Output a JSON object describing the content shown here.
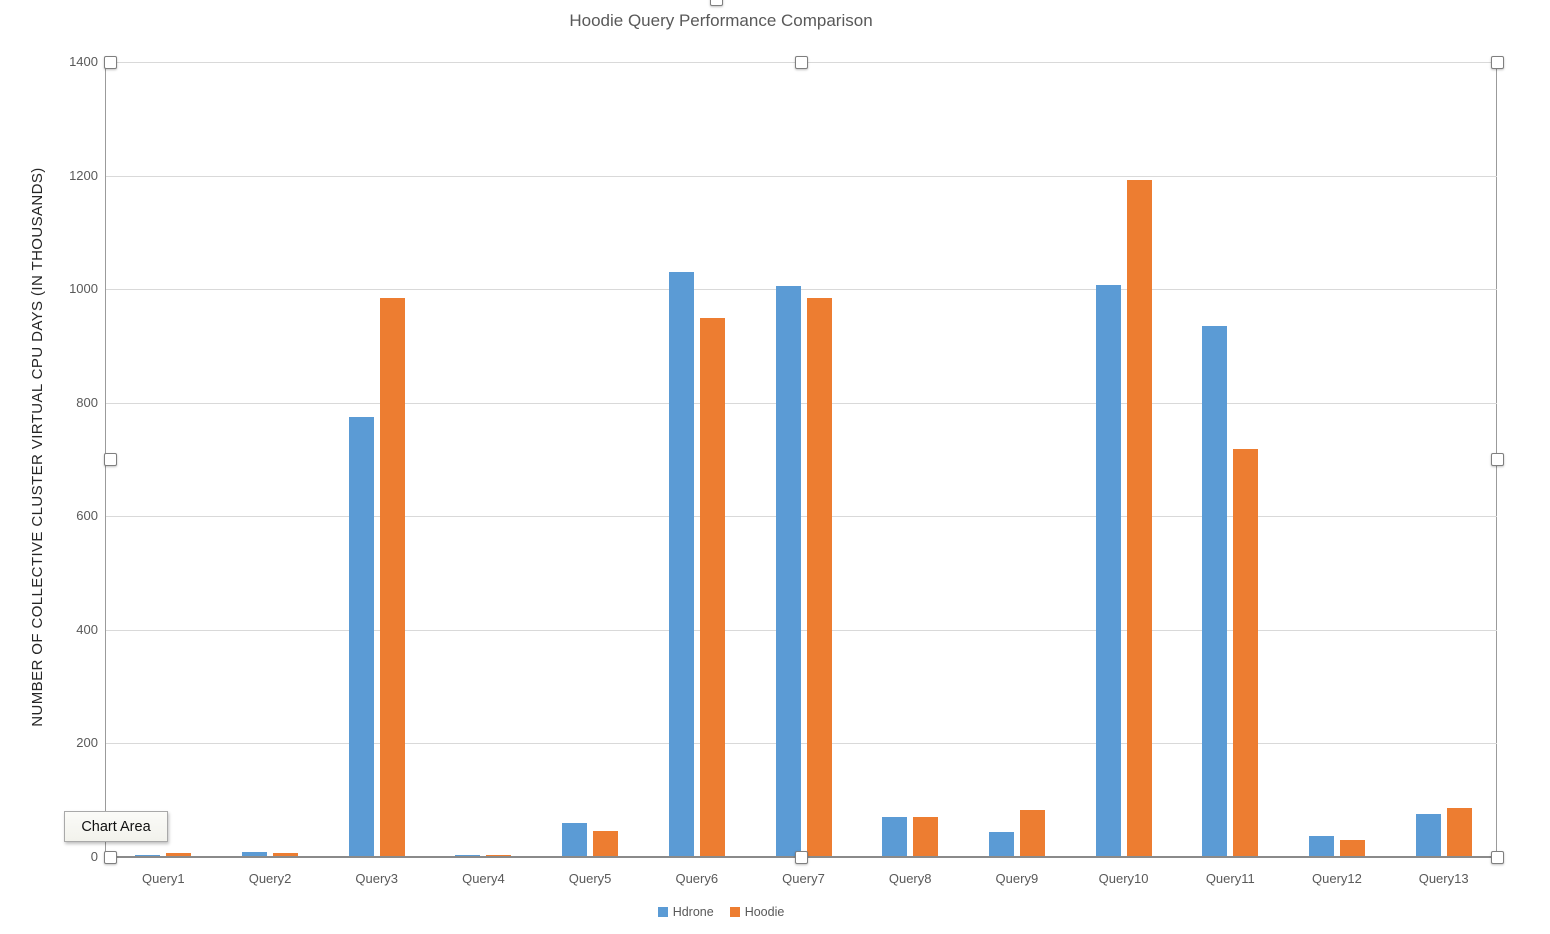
{
  "chart_data": {
    "type": "bar",
    "title": "Hoodie Query Performance Comparison",
    "ylabel": "NUMBER OF COLLECTIVE CLUSTER VIRTUAL CPU DAYS (IN THOUSANDS)",
    "xlabel": "",
    "categories": [
      "Query1",
      "Query2",
      "Query3",
      "Query4",
      "Query5",
      "Query6",
      "Query7",
      "Query8",
      "Query9",
      "Query10",
      "Query11",
      "Query12",
      "Query13"
    ],
    "series": [
      {
        "name": "Hdrone",
        "color": "#5B9BD5",
        "values": [
          4,
          8,
          775,
          3,
          60,
          1030,
          1005,
          70,
          44,
          1008,
          935,
          37,
          76
        ]
      },
      {
        "name": "Hoodie",
        "color": "#ED7D31",
        "values": [
          7,
          7,
          985,
          4,
          46,
          950,
          985,
          70,
          83,
          1193,
          718,
          30,
          86
        ]
      }
    ],
    "ylim": [
      0,
      1400
    ],
    "yticks": [
      0,
      200,
      400,
      600,
      800,
      1000,
      1200,
      1400
    ],
    "grid": true,
    "legend_position": "bottom"
  },
  "overlay": {
    "tooltip": "Chart Area",
    "grid_color": "#D9D9D9",
    "axis_color": "#8A8A8A",
    "text_color": "#595959"
  }
}
